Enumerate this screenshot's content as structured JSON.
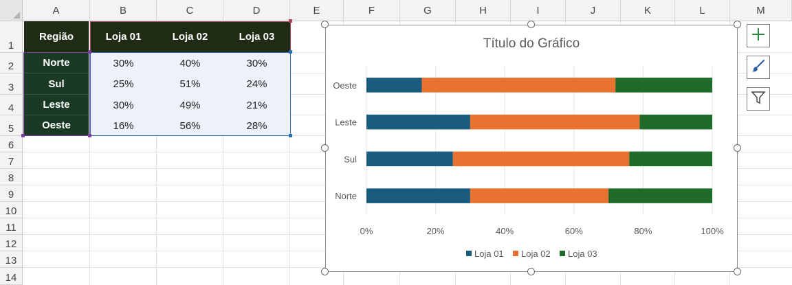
{
  "columns": [
    "A",
    "B",
    "C",
    "D",
    "E",
    "F",
    "G",
    "H",
    "I",
    "J",
    "K",
    "L",
    "M"
  ],
  "rows": [
    "1",
    "2",
    "3",
    "4",
    "5",
    "6",
    "7",
    "8",
    "9",
    "10",
    "11",
    "12",
    "13",
    "14"
  ],
  "table": {
    "header": [
      "Região",
      "Loja 01",
      "Loja 02",
      "Loja 03"
    ],
    "rows": [
      {
        "region": "Norte",
        "values": [
          "30%",
          "40%",
          "30%"
        ]
      },
      {
        "region": "Sul",
        "values": [
          "25%",
          "51%",
          "24%"
        ]
      },
      {
        "region": "Leste",
        "values": [
          "30%",
          "49%",
          "21%"
        ]
      },
      {
        "region": "Oeste",
        "values": [
          "16%",
          "56%",
          "28%"
        ]
      }
    ]
  },
  "colors": {
    "header_bg": "#1f2b14",
    "region_bg": "#1a3a26",
    "value_bg": "#edf2fa",
    "series": [
      "#1b5b7e",
      "#e8722f",
      "#1f6b2a"
    ]
  },
  "side_buttons": [
    {
      "name": "chart-elements-button",
      "icon": "plus-icon"
    },
    {
      "name": "chart-styles-button",
      "icon": "brush-icon"
    },
    {
      "name": "chart-filters-button",
      "icon": "funnel-icon"
    }
  ],
  "chart_data": {
    "type": "bar",
    "orientation": "horizontal",
    "stacked": "100%",
    "title": "Título do Gráfico",
    "categories": [
      "Norte",
      "Sul",
      "Leste",
      "Oeste"
    ],
    "series": [
      {
        "name": "Loja 01",
        "values": [
          30,
          25,
          30,
          16
        ]
      },
      {
        "name": "Loja 02",
        "values": [
          40,
          51,
          49,
          56
        ]
      },
      {
        "name": "Loja 03",
        "values": [
          30,
          24,
          21,
          28
        ]
      }
    ],
    "xticks": [
      "0%",
      "20%",
      "40%",
      "60%",
      "80%",
      "100%"
    ],
    "xlim": [
      0,
      100
    ],
    "grid": true,
    "legend": "bottom"
  }
}
